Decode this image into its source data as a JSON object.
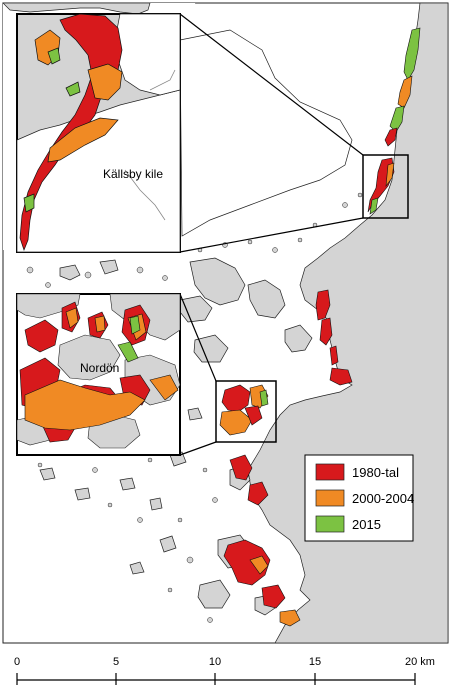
{
  "insets": {
    "top_label": "Källsby kile",
    "bottom_label": "Nordön"
  },
  "legend": {
    "items": [
      {
        "label": "1980-tal",
        "color": "#d7191c"
      },
      {
        "label": "2000-2004",
        "color": "#f08a24"
      },
      {
        "label": "2015",
        "color": "#7cc242"
      }
    ]
  },
  "scale_bar": {
    "ticks": [
      "0",
      "5",
      "10",
      "15",
      "20 km"
    ]
  },
  "colors": {
    "land": "#d4d4d4",
    "water": "#ffffff",
    "outline": "#1a1a1a"
  }
}
